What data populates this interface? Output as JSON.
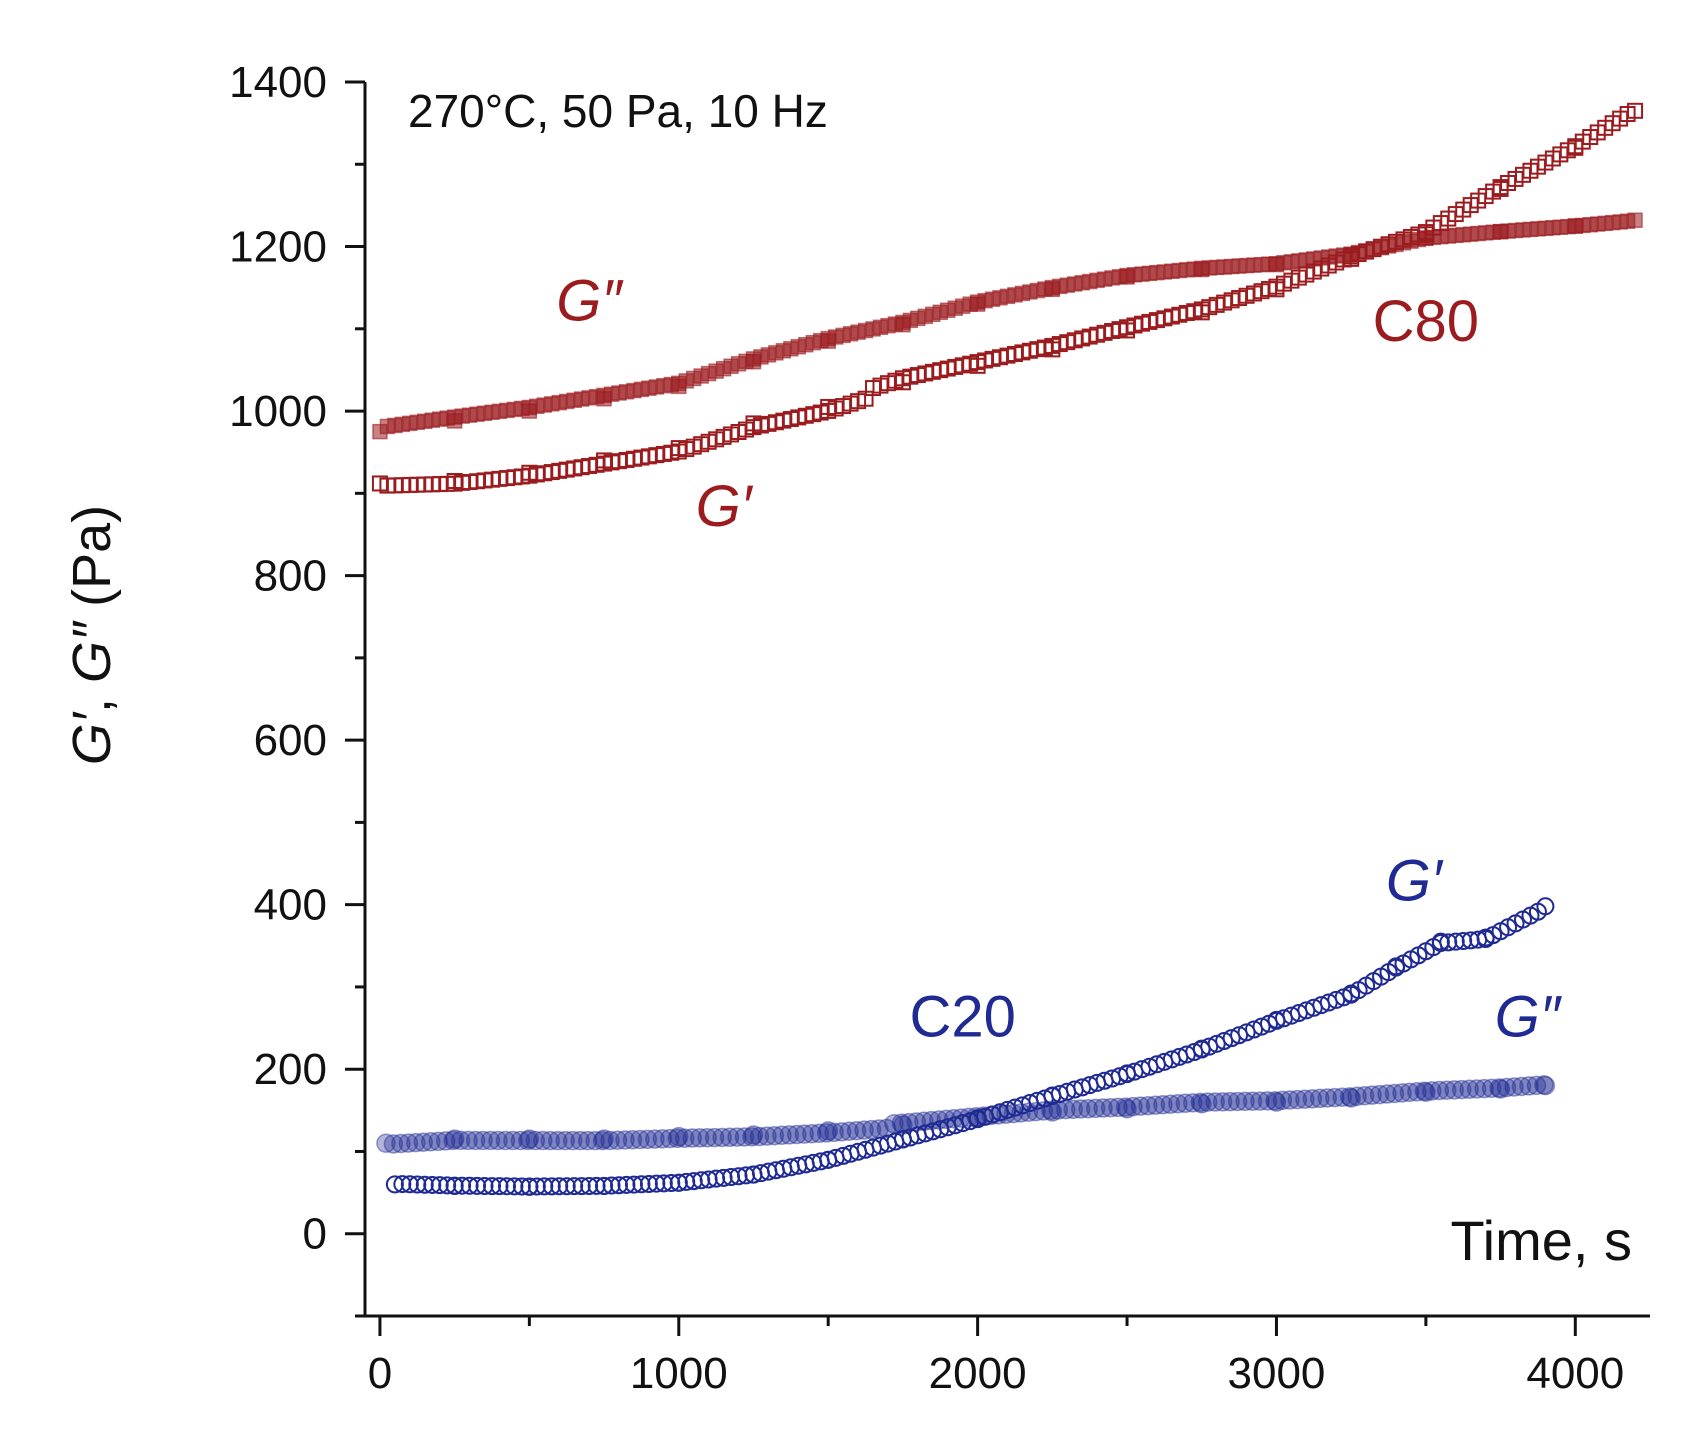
{
  "chart_data": {
    "type": "scatter",
    "title": "",
    "condition_note": "270°C, 50 Pa, 10 Hz",
    "xlabel": "Time, s",
    "ylabel": {
      "g1": "G′",
      "sep": ", ",
      "g2": "G″",
      "unit": " (Pa)"
    },
    "xlim": [
      -50,
      4250
    ],
    "ylim": [
      -100,
      1400
    ],
    "x_ticks": [
      0,
      1000,
      2000,
      3000,
      4000
    ],
    "y_ticks": [
      0,
      200,
      400,
      600,
      800,
      1000,
      1200,
      1400
    ],
    "colors": {
      "C80": "#9b1c1f",
      "C20": "#1f2a93"
    },
    "series": [
      {
        "name": "C80 G″",
        "sample": "C80",
        "modulus": "G″",
        "marker": "filled-square",
        "x": [
          0,
          250,
          500,
          750,
          1000,
          1250,
          1500,
          1750,
          2000,
          2250,
          2500,
          2750,
          3000,
          3250,
          3500,
          3750,
          4000,
          4200
        ],
        "y": [
          975,
          988,
          1000,
          1015,
          1030,
          1060,
          1085,
          1105,
          1130,
          1148,
          1163,
          1172,
          1178,
          1190,
          1210,
          1218,
          1225,
          1232
        ]
      },
      {
        "name": "C80 G′",
        "sample": "C80",
        "modulus": "G′",
        "marker": "open-square",
        "x": [
          0,
          250,
          500,
          750,
          1000,
          1250,
          1500,
          1750,
          2000,
          2250,
          2500,
          2750,
          3000,
          3250,
          3500,
          3750,
          4000,
          4200
        ],
        "y": [
          912,
          915,
          925,
          940,
          955,
          985,
          1005,
          1035,
          1055,
          1075,
          1098,
          1120,
          1148,
          1185,
          1215,
          1270,
          1320,
          1365
        ]
      },
      {
        "name": "C20 G″",
        "sample": "C20",
        "modulus": "G″",
        "marker": "filled-circle",
        "x": [
          20,
          250,
          500,
          750,
          1000,
          1250,
          1500,
          1750,
          2000,
          2250,
          2500,
          2750,
          3000,
          3250,
          3500,
          3750,
          3900
        ],
        "y": [
          110,
          115,
          115,
          115,
          118,
          120,
          125,
          132,
          140,
          148,
          152,
          158,
          160,
          165,
          172,
          176,
          180
        ]
      },
      {
        "name": "C20 G′",
        "sample": "C20",
        "modulus": "G′",
        "marker": "open-circle",
        "x": [
          50,
          250,
          500,
          750,
          1000,
          1250,
          1500,
          1750,
          2000,
          2250,
          2500,
          2750,
          3000,
          3250,
          3400,
          3550,
          3700,
          3900
        ],
        "y": [
          60,
          58,
          57,
          58,
          62,
          72,
          90,
          115,
          140,
          168,
          195,
          225,
          260,
          292,
          325,
          355,
          360,
          398
        ]
      }
    ],
    "annotations": [
      {
        "id": "c80-g2",
        "text": "G″",
        "x": 700,
        "y": 1110,
        "color_key": "C80",
        "italic": true
      },
      {
        "id": "c80-g1",
        "text": "G′",
        "x": 1150,
        "y": 860,
        "color_key": "C80",
        "italic": true
      },
      {
        "id": "c80-label",
        "text": "C80",
        "x": 3500,
        "y": 1085,
        "color_key": "C80",
        "italic": false
      },
      {
        "id": "c20-g1",
        "text": "G′",
        "x": 3460,
        "y": 405,
        "color_key": "C20",
        "italic": true
      },
      {
        "id": "c20-label",
        "text": "C20",
        "x": 1950,
        "y": 240,
        "color_key": "C20",
        "italic": false
      },
      {
        "id": "c20-g2",
        "text": "G″",
        "x": 3840,
        "y": 240,
        "color_key": "C20",
        "italic": true
      }
    ]
  }
}
